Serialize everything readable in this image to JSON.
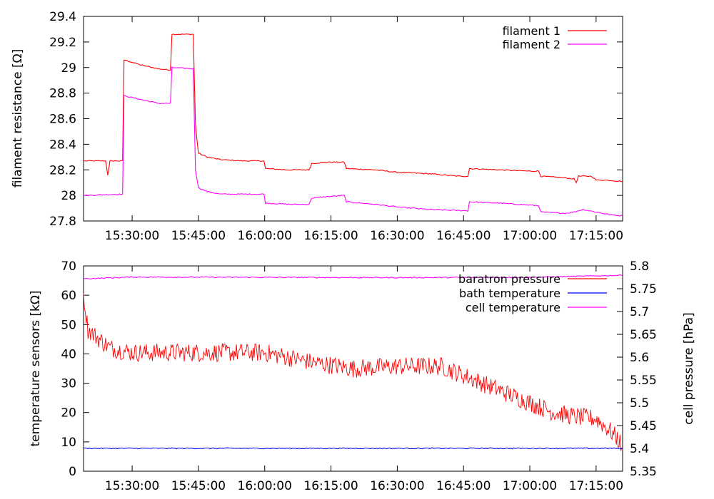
{
  "chart_data": [
    {
      "type": "line",
      "xlabel": "",
      "ylabel": "filament resistance [Ω]",
      "x_unit": "time of day",
      "xlim": [
        "15:19:00",
        "17:21:00"
      ],
      "ylim": [
        27.8,
        29.4
      ],
      "x_ticks": [
        "15:30:00",
        "15:45:00",
        "16:00:00",
        "16:15:00",
        "16:30:00",
        "16:45:00",
        "17:00:00",
        "17:15:00"
      ],
      "y_ticks": [
        "27.8",
        "28",
        "28.2",
        "28.4",
        "28.6",
        "28.8",
        "29",
        "29.2",
        "29.4"
      ],
      "grid": false,
      "legend_position": "top-right",
      "series": [
        {
          "name": "filament 1",
          "color": "#ff0000",
          "points": [
            [
              "15:19:00",
              28.27
            ],
            [
              "15:23:00",
              28.27
            ],
            [
              "15:24:00",
              28.27
            ],
            [
              "15:24:30",
              28.16
            ],
            [
              "15:25:00",
              28.27
            ],
            [
              "15:27:50",
              28.27
            ],
            [
              "15:28:10",
              29.06
            ],
            [
              "15:32:00",
              29.02
            ],
            [
              "15:36:00",
              28.99
            ],
            [
              "15:38:40",
              28.98
            ],
            [
              "15:39:00",
              29.26
            ],
            [
              "15:43:50",
              29.26
            ],
            [
              "15:44:20",
              28.55
            ],
            [
              "15:45:00",
              28.33
            ],
            [
              "15:47:00",
              28.3
            ],
            [
              "15:50:00",
              28.28
            ],
            [
              "15:55:00",
              28.27
            ],
            [
              "15:59:50",
              28.27
            ],
            [
              "16:00:10",
              28.21
            ],
            [
              "16:05:00",
              28.2
            ],
            [
              "16:10:00",
              28.2
            ],
            [
              "16:10:40",
              28.25
            ],
            [
              "16:14:00",
              28.26
            ],
            [
              "16:18:00",
              28.26
            ],
            [
              "16:18:30",
              28.21
            ],
            [
              "16:25:00",
              28.2
            ],
            [
              "16:30:00",
              28.18
            ],
            [
              "16:37:00",
              28.17
            ],
            [
              "16:44:00",
              28.15
            ],
            [
              "16:46:00",
              28.15
            ],
            [
              "16:46:20",
              28.21
            ],
            [
              "16:53:00",
              28.2
            ],
            [
              "17:00:00",
              28.19
            ],
            [
              "17:02:00",
              28.19
            ],
            [
              "17:02:30",
              28.15
            ],
            [
              "17:07:00",
              28.14
            ],
            [
              "17:10:00",
              28.13
            ],
            [
              "17:10:30",
              28.1
            ],
            [
              "17:11:00",
              28.15
            ],
            [
              "17:14:00",
              28.15
            ],
            [
              "17:15:00",
              28.12
            ],
            [
              "17:17:00",
              28.12
            ],
            [
              "17:21:00",
              28.11
            ]
          ]
        },
        {
          "name": "filament 2",
          "color": "#ff00ff",
          "points": [
            [
              "15:19:00",
              28.0
            ],
            [
              "15:27:50",
              28.01
            ],
            [
              "15:28:10",
              28.78
            ],
            [
              "15:32:00",
              28.75
            ],
            [
              "15:36:00",
              28.72
            ],
            [
              "15:38:40",
              28.72
            ],
            [
              "15:39:00",
              29.0
            ],
            [
              "15:43:50",
              28.99
            ],
            [
              "15:44:20",
              28.2
            ],
            [
              "15:45:00",
              28.06
            ],
            [
              "15:47:00",
              28.03
            ],
            [
              "15:50:00",
              28.01
            ],
            [
              "15:59:50",
              28.01
            ],
            [
              "16:00:10",
              27.94
            ],
            [
              "16:06:00",
              27.93
            ],
            [
              "16:10:00",
              27.93
            ],
            [
              "16:10:40",
              27.98
            ],
            [
              "16:14:00",
              27.99
            ],
            [
              "16:18:00",
              28.0
            ],
            [
              "16:18:30",
              27.95
            ],
            [
              "16:25:00",
              27.93
            ],
            [
              "16:30:00",
              27.91
            ],
            [
              "16:37:00",
              27.89
            ],
            [
              "16:46:00",
              27.88
            ],
            [
              "16:46:20",
              27.95
            ],
            [
              "16:53:00",
              27.94
            ],
            [
              "17:02:00",
              27.92
            ],
            [
              "17:02:30",
              27.87
            ],
            [
              "17:08:00",
              27.86
            ],
            [
              "17:10:00",
              27.87
            ],
            [
              "17:12:00",
              27.89
            ],
            [
              "17:15:00",
              27.87
            ],
            [
              "17:18:00",
              27.85
            ],
            [
              "17:21:00",
              27.84
            ]
          ]
        }
      ]
    },
    {
      "type": "line",
      "xlabel": "",
      "ylabel": "temperature sensors [kΩ]",
      "y2label": "cell pressure [hPa]",
      "x_unit": "time of day",
      "xlim": [
        "15:19:00",
        "17:21:00"
      ],
      "ylim": [
        0,
        70
      ],
      "y2lim": [
        5.35,
        5.8
      ],
      "x_ticks": [
        "15:30:00",
        "15:45:00",
        "16:00:00",
        "16:15:00",
        "16:30:00",
        "16:45:00",
        "17:00:00",
        "17:15:00"
      ],
      "y_ticks": [
        "0",
        "10",
        "20",
        "30",
        "40",
        "50",
        "60",
        "70"
      ],
      "y2_ticks": [
        "5.35",
        "5.4",
        "5.45",
        "5.5",
        "5.55",
        "5.6",
        "5.65",
        "5.7",
        "5.75",
        "5.8"
      ],
      "grid": false,
      "legend_position": "top-right",
      "series": [
        {
          "name": "baratron pressure",
          "axis": "right",
          "color": "#ff0000",
          "points": [
            [
              "15:19:00",
              5.74
            ],
            [
              "15:20:00",
              5.66
            ],
            [
              "15:25:00",
              5.62
            ],
            [
              "15:30:00",
              5.61
            ],
            [
              "15:40:00",
              5.61
            ],
            [
              "15:50:00",
              5.61
            ],
            [
              "16:00:00",
              5.61
            ],
            [
              "16:10:00",
              5.59
            ],
            [
              "16:20:00",
              5.575
            ],
            [
              "16:30:00",
              5.58
            ],
            [
              "16:40:00",
              5.58
            ],
            [
              "16:45:00",
              5.56
            ],
            [
              "16:50:00",
              5.54
            ],
            [
              "16:55:00",
              5.52
            ],
            [
              "17:00:00",
              5.5
            ],
            [
              "17:05:00",
              5.48
            ],
            [
              "17:10:00",
              5.47
            ],
            [
              "17:15:00",
              5.465
            ],
            [
              "17:18:00",
              5.44
            ],
            [
              "17:20:00",
              5.42
            ],
            [
              "17:21:00",
              5.4
            ]
          ]
        },
        {
          "name": "bath temperature",
          "axis": "left",
          "color": "#0000ff",
          "points": [
            [
              "15:19:00",
              7.8
            ],
            [
              "16:00:00",
              7.8
            ],
            [
              "16:45:00",
              7.8
            ],
            [
              "17:21:00",
              7.8
            ]
          ]
        },
        {
          "name": "cell temperature",
          "axis": "left",
          "color": "#ff00ff",
          "points": [
            [
              "15:19:00",
              65.6
            ],
            [
              "15:30:00",
              66.2
            ],
            [
              "16:00:00",
              66.1
            ],
            [
              "16:30:00",
              66.0
            ],
            [
              "17:00:00",
              66.1
            ],
            [
              "17:21:00",
              66.8
            ]
          ]
        }
      ]
    }
  ]
}
